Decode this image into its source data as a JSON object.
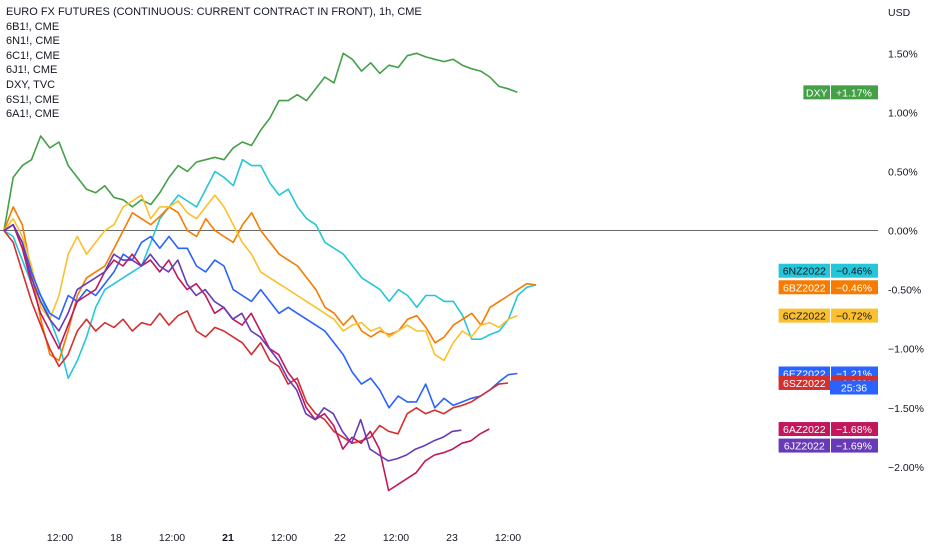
{
  "legend": {
    "title": "EURO FX FUTURES (CONTINUOUS: CURRENT CONTRACT IN FRONT), 1h, CME",
    "symbols": [
      "6B1!, CME",
      "6N1!, CME",
      "6C1!, CME",
      "6J1!, CME",
      "DXY, TVC",
      "6S1!, CME",
      "6A1!, CME"
    ]
  },
  "countdown": "25:36",
  "chart_data": {
    "type": "line",
    "title": "EURO FX FUTURES (CONTINUOUS: CURRENT CONTRACT IN FRONT), 1h, CME",
    "y_unit": "USD",
    "ylim": [
      -2.45,
      1.85
    ],
    "y_ticks": [
      {
        "value": 1.5,
        "label": "1.50%"
      },
      {
        "value": 1.0,
        "label": "1.00%"
      },
      {
        "value": 0.5,
        "label": "0.50%"
      },
      {
        "value": 0.0,
        "label": "0.00%"
      },
      {
        "value": -0.5,
        "label": "-0.50%"
      },
      {
        "value": -1.0,
        "label": "−1.00%"
      },
      {
        "value": -1.5,
        "label": "−1.50%"
      },
      {
        "value": -2.0,
        "label": "−2.00%"
      }
    ],
    "x_ticks": [
      {
        "t": 6,
        "label": "12:00",
        "bold": false
      },
      {
        "t": 12,
        "label": "18",
        "bold": false
      },
      {
        "t": 18,
        "label": "12:00",
        "bold": false
      },
      {
        "t": 24,
        "label": "21",
        "bold": true
      },
      {
        "t": 30,
        "label": "12:00",
        "bold": false
      },
      {
        "t": 36,
        "label": "22",
        "bold": false
      },
      {
        "t": 42,
        "label": "12:00",
        "bold": false
      },
      {
        "t": 48,
        "label": "23",
        "bold": false
      },
      {
        "t": 54,
        "label": "12:00",
        "bold": false
      }
    ],
    "x_range": [
      0,
      57
    ],
    "zero_line": 0.0,
    "series": [
      {
        "name": "DXY",
        "tag": "DXY",
        "last_label": "+1.17%",
        "color": "#43a047",
        "values": [
          0.0,
          0.45,
          0.55,
          0.6,
          0.8,
          0.7,
          0.75,
          0.55,
          0.45,
          0.35,
          0.32,
          0.38,
          0.28,
          0.26,
          0.2,
          0.26,
          0.22,
          0.32,
          0.45,
          0.55,
          0.5,
          0.58,
          0.6,
          0.62,
          0.6,
          0.7,
          0.75,
          0.72,
          0.85,
          0.95,
          1.1,
          1.1,
          1.15,
          1.1,
          1.2,
          1.3,
          1.25,
          1.5,
          1.45,
          1.35,
          1.42,
          1.33,
          1.4,
          1.38,
          1.48,
          1.5,
          1.47,
          1.45,
          1.43,
          1.45,
          1.4,
          1.37,
          1.35,
          1.3,
          1.22,
          1.2,
          1.17
        ]
      },
      {
        "name": "6NZ2022",
        "tag": "6NZ2022",
        "last_label": "−0.46%",
        "color": "#26c6da",
        "values": [
          0.0,
          -0.05,
          -0.25,
          -0.45,
          -0.55,
          -0.75,
          -0.95,
          -1.25,
          -1.1,
          -0.9,
          -0.65,
          -0.5,
          -0.45,
          -0.4,
          -0.35,
          -0.3,
          -0.1,
          0.1,
          0.2,
          0.3,
          0.25,
          0.2,
          0.35,
          0.5,
          0.45,
          0.38,
          0.6,
          0.55,
          0.55,
          0.4,
          0.3,
          0.35,
          0.2,
          0.1,
          0.05,
          -0.1,
          -0.15,
          -0.2,
          -0.3,
          -0.4,
          -0.45,
          -0.5,
          -0.6,
          -0.5,
          -0.55,
          -0.65,
          -0.55,
          -0.55,
          -0.6,
          -0.6,
          -0.72,
          -0.92,
          -0.92,
          -0.88,
          -0.85,
          -0.75,
          -0.55,
          -0.48,
          -0.46
        ]
      },
      {
        "name": "6BZ2022",
        "tag": "6BZ2022",
        "last_label": "−0.46%",
        "color": "#f57c00",
        "values": [
          0.0,
          0.2,
          0.05,
          -0.35,
          -0.75,
          -1.05,
          -1.1,
          -0.85,
          -0.55,
          -0.4,
          -0.35,
          -0.3,
          -0.15,
          0.0,
          0.15,
          0.1,
          0.05,
          0.12,
          0.2,
          0.15,
          0.0,
          -0.05,
          0.1,
          0.0,
          -0.05,
          -0.1,
          0.05,
          0.15,
          0.0,
          -0.1,
          -0.2,
          -0.25,
          -0.3,
          -0.4,
          -0.5,
          -0.65,
          -0.7,
          -0.8,
          -0.72,
          -0.85,
          -0.9,
          -0.85,
          -0.88,
          -0.85,
          -0.75,
          -0.72,
          -0.82,
          -0.95,
          -0.9,
          -0.8,
          -0.75,
          -0.7,
          -0.8,
          -0.65,
          -0.6,
          -0.55,
          -0.5,
          -0.45,
          -0.46
        ]
      },
      {
        "name": "6CZ2022",
        "tag": "6CZ2022",
        "last_label": "−0.72%",
        "color": "#fbc02d",
        "values": [
          0.0,
          0.1,
          -0.05,
          -0.3,
          -0.65,
          -0.75,
          -0.55,
          -0.2,
          -0.05,
          -0.2,
          -0.1,
          0.0,
          0.05,
          0.2,
          0.25,
          0.3,
          0.1,
          0.2,
          0.2,
          0.25,
          0.15,
          0.1,
          0.2,
          0.3,
          0.2,
          0.05,
          -0.1,
          -0.2,
          -0.35,
          -0.4,
          -0.45,
          -0.5,
          -0.55,
          -0.6,
          -0.65,
          -0.7,
          -0.75,
          -0.85,
          -0.8,
          -0.78,
          -0.85,
          -0.82,
          -0.9,
          -0.85,
          -0.8,
          -0.85,
          -0.85,
          -1.05,
          -1.1,
          -0.95,
          -0.85,
          -0.9,
          -0.8,
          -0.78,
          -0.82,
          -0.75,
          -0.72
        ]
      },
      {
        "name": "6EZ2022",
        "tag": "6EZ2022",
        "last_label": "−1.21%",
        "color": "#2962ff",
        "values": [
          0.0,
          0.05,
          -0.1,
          -0.35,
          -0.55,
          -0.7,
          -0.75,
          -0.55,
          -0.6,
          -0.5,
          -0.55,
          -0.45,
          -0.35,
          -0.2,
          -0.25,
          -0.1,
          -0.05,
          -0.15,
          -0.05,
          -0.15,
          -0.15,
          -0.3,
          -0.35,
          -0.25,
          -0.3,
          -0.5,
          -0.55,
          -0.6,
          -0.5,
          -0.6,
          -0.7,
          -0.65,
          -0.7,
          -0.75,
          -0.8,
          -0.85,
          -0.95,
          -1.05,
          -1.2,
          -1.3,
          -1.25,
          -1.35,
          -1.5,
          -1.4,
          -1.45,
          -1.45,
          -1.3,
          -1.5,
          -1.42,
          -1.48,
          -1.45,
          -1.42,
          -1.4,
          -1.35,
          -1.28,
          -1.22,
          -1.21
        ]
      },
      {
        "name": "6SZ2022",
        "tag": "6SZ2022",
        "last_label": "−1.29%",
        "color": "#d32f2f",
        "values": [
          0.0,
          -0.1,
          -0.35,
          -0.6,
          -0.8,
          -1.0,
          -1.15,
          -1.05,
          -0.85,
          -0.75,
          -0.85,
          -0.78,
          -0.82,
          -0.75,
          -0.85,
          -0.78,
          -0.8,
          -0.7,
          -0.8,
          -0.72,
          -0.68,
          -0.85,
          -0.9,
          -0.82,
          -0.85,
          -0.9,
          -0.95,
          -1.05,
          -0.95,
          -1.1,
          -1.15,
          -1.3,
          -1.25,
          -1.45,
          -1.55,
          -1.6,
          -1.7,
          -1.75,
          -1.8,
          -1.78,
          -1.75,
          -1.65,
          -1.7,
          -1.72,
          -1.55,
          -1.5,
          -1.55,
          -1.52,
          -1.55,
          -1.5,
          -1.48,
          -1.45,
          -1.4,
          -1.35,
          -1.3,
          -1.29
        ]
      },
      {
        "name": "6AZ2022",
        "tag": "6AZ2022",
        "last_label": "−1.68%",
        "color": "#c2185b",
        "values": [
          0.0,
          0.05,
          -0.15,
          -0.45,
          -0.7,
          -0.85,
          -1.0,
          -0.8,
          -0.6,
          -0.55,
          -0.5,
          -0.35,
          -0.25,
          -0.3,
          -0.2,
          -0.3,
          -0.25,
          -0.35,
          -0.25,
          -0.4,
          -0.5,
          -0.45,
          -0.55,
          -0.7,
          -0.65,
          -0.75,
          -0.8,
          -0.7,
          -0.85,
          -1.0,
          -1.05,
          -1.2,
          -1.3,
          -1.5,
          -1.6,
          -1.55,
          -1.65,
          -1.85,
          -1.75,
          -1.8,
          -1.7,
          -1.85,
          -2.2,
          -2.15,
          -2.1,
          -2.05,
          -1.95,
          -1.9,
          -1.88,
          -1.85,
          -1.8,
          -1.78,
          -1.72,
          -1.68
        ]
      },
      {
        "name": "6JZ2022",
        "tag": "6JZ2022",
        "last_label": "−1.69%",
        "color": "#673ab7",
        "values": [
          0.0,
          0.05,
          -0.1,
          -0.4,
          -0.6,
          -0.75,
          -0.85,
          -0.7,
          -0.5,
          -0.45,
          -0.4,
          -0.35,
          -0.2,
          -0.25,
          -0.25,
          -0.3,
          -0.2,
          -0.3,
          -0.35,
          -0.25,
          -0.45,
          -0.55,
          -0.5,
          -0.6,
          -0.65,
          -0.75,
          -0.7,
          -0.85,
          -0.9,
          -1.0,
          -1.1,
          -1.25,
          -1.35,
          -1.55,
          -1.6,
          -1.5,
          -1.55,
          -1.7,
          -1.8,
          -1.6,
          -1.85,
          -1.9,
          -1.95,
          -1.93,
          -1.9,
          -1.85,
          -1.82,
          -1.78,
          -1.75,
          -1.7,
          -1.69
        ]
      }
    ],
    "series_x_end": [
      55,
      57,
      57,
      55,
      55,
      54,
      52,
      49
    ]
  }
}
